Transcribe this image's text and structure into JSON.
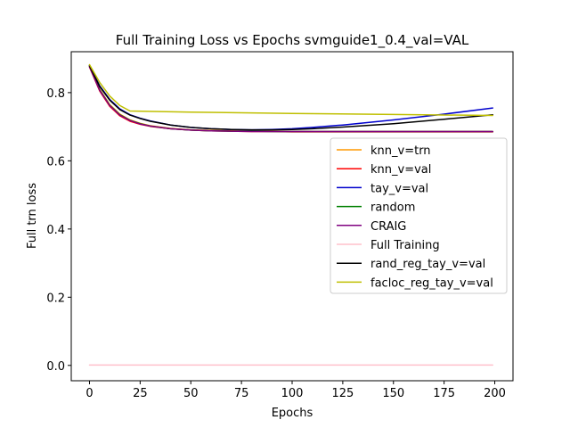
{
  "chart_data": {
    "type": "line",
    "title": "Full Training Loss vs Epochs svmguide1_0.4_val=VAL",
    "xlabel": "Epochs",
    "ylabel": "Full trn loss",
    "xlim": [
      -9,
      209
    ],
    "ylim": [
      -0.045,
      0.92
    ],
    "xticks": [
      0,
      25,
      50,
      75,
      100,
      125,
      150,
      175,
      200
    ],
    "yticks": [
      0.0,
      0.2,
      0.4,
      0.6,
      0.8
    ],
    "ytick_labels": [
      "0.0",
      "0.2",
      "0.4",
      "0.6",
      "0.8"
    ],
    "grid": false,
    "legend_position": "center-right",
    "series": [
      {
        "name": "knn_v=trn",
        "color": "#ff9900",
        "x": [
          0,
          5,
          10,
          15,
          20,
          25,
          30,
          40,
          50,
          60,
          70,
          80,
          90,
          100,
          125,
          150,
          175,
          199
        ],
        "y": [
          0.878,
          0.81,
          0.765,
          0.737,
          0.72,
          0.71,
          0.703,
          0.695,
          0.691,
          0.689,
          0.688,
          0.687,
          0.687,
          0.686,
          0.686,
          0.686,
          0.686,
          0.686
        ]
      },
      {
        "name": "knn_v=val",
        "color": "#ff0000",
        "x": [
          0,
          5,
          10,
          15,
          20,
          25,
          30,
          40,
          50,
          60,
          70,
          80,
          90,
          100,
          125,
          150,
          175,
          199
        ],
        "y": [
          0.875,
          0.805,
          0.76,
          0.732,
          0.716,
          0.707,
          0.701,
          0.694,
          0.69,
          0.688,
          0.687,
          0.686,
          0.686,
          0.685,
          0.685,
          0.685,
          0.685,
          0.685
        ]
      },
      {
        "name": "tay_v=val",
        "color": "#0000cc",
        "x": [
          0,
          5,
          10,
          15,
          20,
          25,
          30,
          40,
          50,
          60,
          70,
          80,
          90,
          100,
          110,
          125,
          150,
          175,
          199
        ],
        "y": [
          0.88,
          0.82,
          0.78,
          0.752,
          0.735,
          0.725,
          0.717,
          0.705,
          0.698,
          0.694,
          0.692,
          0.691,
          0.692,
          0.694,
          0.698,
          0.705,
          0.72,
          0.737,
          0.755
        ]
      },
      {
        "name": "random",
        "color": "#008000",
        "x": [
          0,
          5,
          10,
          15,
          20,
          25,
          30,
          40,
          50,
          60,
          70,
          80,
          90,
          100,
          125,
          150,
          175,
          199
        ],
        "y": [
          0.877,
          0.808,
          0.763,
          0.735,
          0.719,
          0.709,
          0.702,
          0.694,
          0.69,
          0.688,
          0.687,
          0.687,
          0.686,
          0.686,
          0.686,
          0.686,
          0.686,
          0.686
        ]
      },
      {
        "name": "CRAIG",
        "color": "#800080",
        "x": [
          0,
          5,
          10,
          15,
          20,
          25,
          30,
          40,
          50,
          60,
          70,
          80,
          90,
          100,
          125,
          150,
          175,
          199
        ],
        "y": [
          0.876,
          0.807,
          0.762,
          0.734,
          0.718,
          0.708,
          0.702,
          0.694,
          0.69,
          0.688,
          0.687,
          0.686,
          0.686,
          0.686,
          0.686,
          0.686,
          0.686,
          0.686
        ]
      },
      {
        "name": "Full Training",
        "color": "#ffc0cb",
        "x": [
          0,
          199
        ],
        "y": [
          0.001,
          0.001
        ]
      },
      {
        "name": "rand_reg_tay_v=val",
        "color": "#000000",
        "x": [
          0,
          5,
          10,
          15,
          20,
          25,
          30,
          40,
          50,
          60,
          70,
          80,
          90,
          100,
          110,
          125,
          150,
          175,
          199
        ],
        "y": [
          0.879,
          0.818,
          0.778,
          0.75,
          0.734,
          0.724,
          0.716,
          0.705,
          0.698,
          0.694,
          0.692,
          0.691,
          0.691,
          0.692,
          0.694,
          0.699,
          0.709,
          0.722,
          0.735
        ]
      },
      {
        "name": "facloc_reg_tay_v=val",
        "color": "#bfbf00",
        "x": [
          0,
          5,
          10,
          15,
          20,
          50,
          100,
          150,
          199
        ],
        "y": [
          0.882,
          0.83,
          0.79,
          0.762,
          0.746,
          0.743,
          0.739,
          0.736,
          0.733
        ]
      }
    ]
  }
}
